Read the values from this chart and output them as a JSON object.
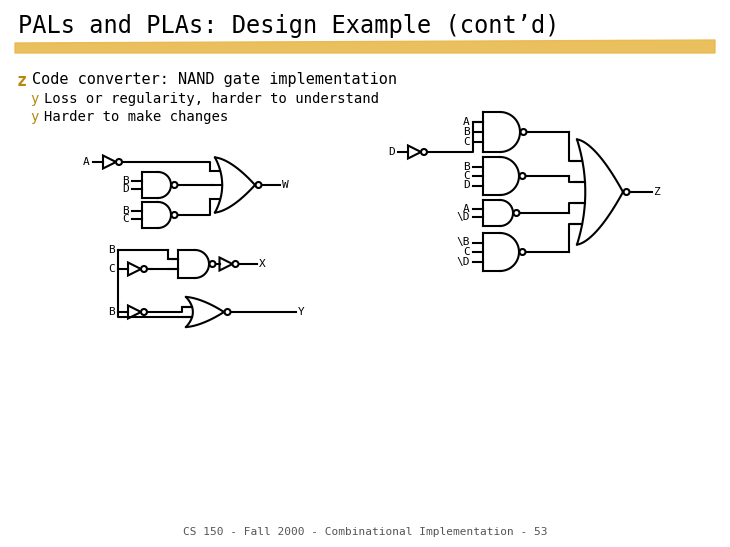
{
  "title": "PALs and PLAs: Design Example (cont’d)",
  "z_bullet": "z",
  "subtitle_text": "Code converter: NAND gate implementation",
  "sub_bullets": [
    "Loss or regularity, harder to understand",
    "Harder to make changes"
  ],
  "footer": "CS 150 - Fall 2000 - Combinational Implementation - 53",
  "bg_color": "#ffffff",
  "title_color": "#000000",
  "bullet_color": "#B8860B",
  "text_color": "#000000",
  "highlight_color": "#E8B84B",
  "title_fontsize": 17,
  "body_fontsize": 11,
  "sub_fontsize": 10,
  "footer_fontsize": 8,
  "lw": 1.5
}
